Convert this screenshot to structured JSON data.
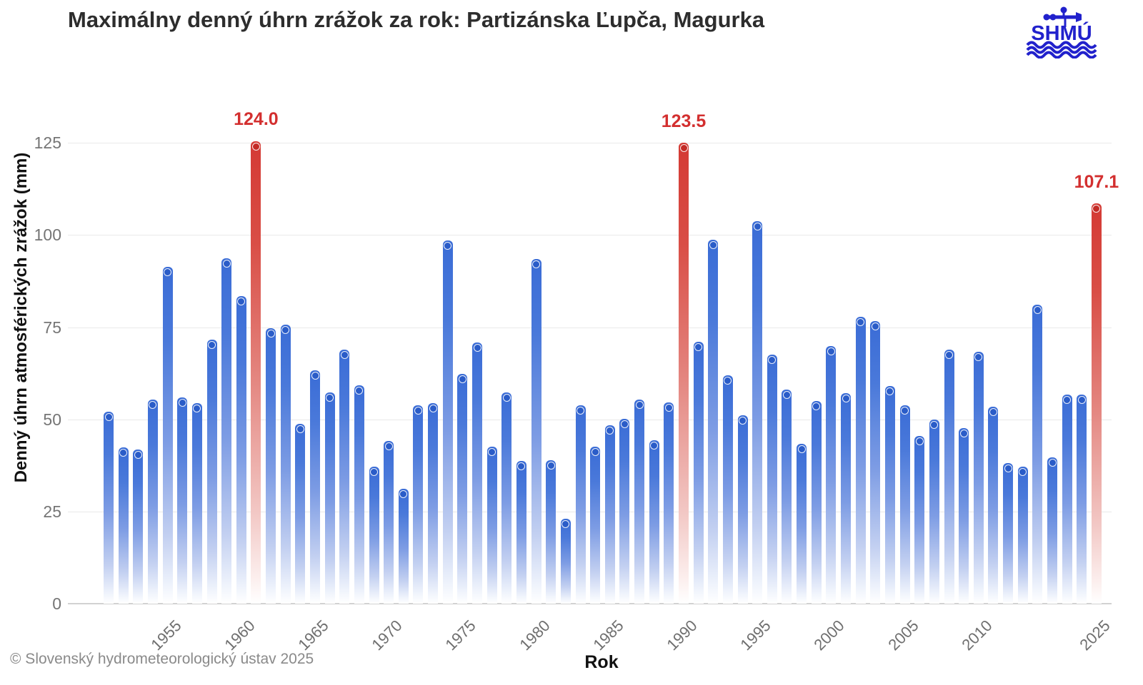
{
  "header": {
    "title": "Maximálny denný úhrn zrážok za rok: Partizánska Ľupča, Magurka",
    "logo_text": "SHMÚ"
  },
  "footer": {
    "copyright": "© Slovenský hydrometeorologický ústav 2025"
  },
  "chart_data": {
    "type": "bar",
    "title": "Maximálny denný úhrn zrážok za rok: Partizánska Ľupča, Magurka",
    "xlabel": "Rok",
    "ylabel": "Denný úhrn atmosférických zrážok (mm)",
    "ylim": [
      0,
      125
    ],
    "yticks": [
      0,
      25,
      50,
      75,
      100,
      125
    ],
    "xticks": [
      1955,
      1960,
      1965,
      1970,
      1975,
      1980,
      1985,
      1990,
      1995,
      2000,
      2005,
      2010,
      2025
    ],
    "grid": "horizontal",
    "legend": "none",
    "categories": [
      1951,
      1952,
      1953,
      1954,
      1955,
      1956,
      1957,
      1958,
      1959,
      1960,
      1961,
      1962,
      1963,
      1964,
      1965,
      1966,
      1967,
      1968,
      1969,
      1970,
      1971,
      1972,
      1973,
      1974,
      1975,
      1976,
      1977,
      1978,
      1979,
      1980,
      1981,
      1982,
      1983,
      1984,
      1985,
      1986,
      1987,
      1988,
      1989,
      1990,
      1991,
      1992,
      1993,
      1994,
      1995,
      1996,
      1997,
      1998,
      1999,
      2000,
      2001,
      2002,
      2003,
      2004,
      2005,
      2006,
      2007,
      2008,
      2009,
      2010,
      2011,
      2012,
      2013,
      2014,
      2022,
      2023,
      2024,
      2025
    ],
    "values": [
      50.6,
      40.9,
      40.4,
      54.0,
      90.0,
      54.4,
      52.9,
      70.2,
      92.3,
      82.0,
      124.0,
      73.3,
      74.3,
      47.3,
      61.9,
      55.9,
      67.5,
      57.8,
      35.8,
      42.6,
      29.7,
      52.4,
      53.0,
      97.0,
      60.8,
      69.4,
      41.2,
      55.9,
      37.2,
      92.0,
      37.4,
      21.5,
      52.3,
      41.1,
      46.9,
      48.6,
      54.0,
      42.8,
      53.1,
      123.5,
      69.5,
      97.2,
      60.4,
      49.7,
      102.3,
      66.1,
      56.6,
      42.0,
      53.6,
      68.5,
      55.7,
      76.3,
      75.2,
      57.5,
      52.3,
      44.0,
      48.4,
      67.5,
      46.2,
      66.8,
      51.9,
      36.7,
      35.7,
      79.7,
      38.3,
      55.2,
      55.2,
      107.1
    ],
    "highlighted": [
      {
        "year": 1961,
        "value": 124.0,
        "label": "124.0"
      },
      {
        "year": 1990,
        "value": 123.5,
        "label": "123.5"
      },
      {
        "year": 2025,
        "value": 107.1,
        "label": "107.1"
      }
    ],
    "colors": {
      "bar": "#3a6cd6",
      "bar_dot": "#2a5cc8",
      "highlight_bar": "#d43a34",
      "highlight_dot": "#c32b26",
      "annotation_text": "#d32f2f",
      "grid": "#e9e9e9",
      "tick_text": "#757575"
    }
  }
}
